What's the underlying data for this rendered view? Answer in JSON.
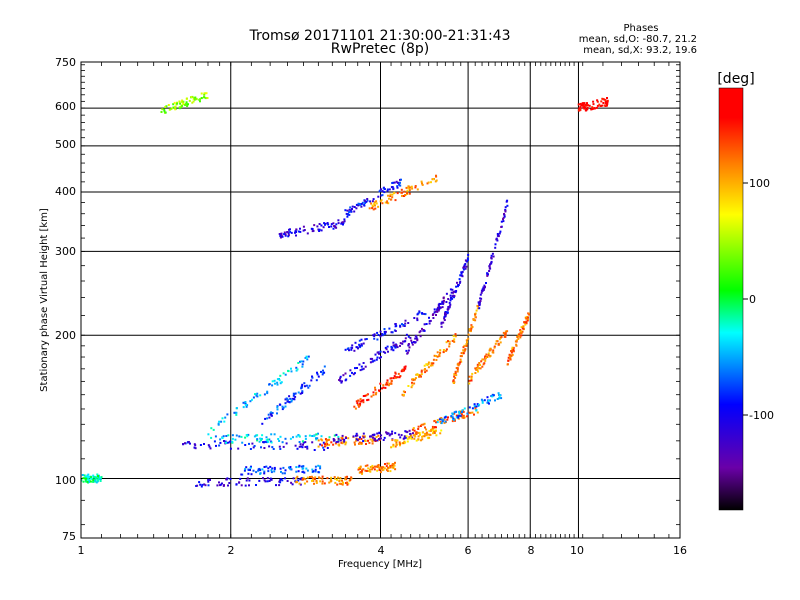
{
  "chart_data": {
    "type": "scatter",
    "title": "Tromsø 20171101 21:30:00-21:31:43",
    "subtitle": "RwPretec (8p)",
    "xlabel": "Frequency [MHz]",
    "ylabel": "Stationary phase Virtual Height [km]",
    "x_scale": "log",
    "y_scale": "log",
    "xlim": [
      1,
      16
    ],
    "ylim": [
      75,
      750
    ],
    "x_ticks": [
      "1",
      "2",
      "4",
      "6",
      "8",
      "10",
      "16"
    ],
    "y_ticks": [
      "75",
      "100",
      "200",
      "300",
      "400",
      "500",
      "600",
      "750"
    ],
    "grid": true,
    "phases_header": "Phases",
    "phases_lines": [
      "mean, sd,O: -80.7, 21.2",
      "mean, sd,X:  93.2, 19.6"
    ],
    "colorbar": {
      "label": "[deg]",
      "range": [
        -180,
        180
      ],
      "ticks": [
        "100",
        "0",
        "-100"
      ],
      "colors": [
        "#000000",
        "#6a00a8",
        "#0000ff",
        "#00ffff",
        "#00ff00",
        "#ffff00",
        "#ff7f00",
        "#ff0000"
      ]
    },
    "traces": [
      {
        "x": [
          1.0,
          1.1
        ],
        "h": [
          100,
          100
        ],
        "phase": -20
      },
      {
        "x": [
          1.7,
          2.8
        ],
        "h": [
          98,
          99
        ],
        "phase": -110
      },
      {
        "x": [
          2.7,
          3.5
        ],
        "h": [
          99,
          99
        ],
        "phase": 110
      },
      {
        "x": [
          2.1,
          3.1
        ],
        "h": [
          104,
          105
        ],
        "phase": -70
      },
      {
        "x": [
          3.6,
          4.3
        ],
        "h": [
          104,
          106
        ],
        "phase": 115
      },
      {
        "x": [
          1.6,
          3.2
        ],
        "h": [
          118,
          117
        ],
        "phase": -100
      },
      {
        "x": [
          1.8,
          3.3
        ],
        "h": [
          121,
          122
        ],
        "phase": -40
      },
      {
        "x": [
          3.0,
          4.0
        ],
        "h": [
          119,
          121
        ],
        "phase": 120
      },
      {
        "x": [
          3.2,
          4.7
        ],
        "h": [
          121,
          124
        ],
        "phase": -120
      },
      {
        "x": [
          4.2,
          5.3
        ],
        "h": [
          118,
          126
        ],
        "phase": 100
      },
      {
        "x": [
          4.6,
          6.3
        ],
        "h": [
          125,
          140
        ],
        "phase": 120
      },
      {
        "x": [
          5.2,
          7.0
        ],
        "h": [
          130,
          150
        ],
        "phase": -60
      },
      {
        "x": [
          1.8,
          2.9
        ],
        "h": [
          125,
          180
        ],
        "phase": -45
      },
      {
        "x": [
          2.3,
          3.1
        ],
        "h": [
          130,
          170
        ],
        "phase": -80
      },
      {
        "x": [
          3.3,
          4.6
        ],
        "h": [
          160,
          200
        ],
        "phase": -110
      },
      {
        "x": [
          3.4,
          5.0
        ],
        "h": [
          185,
          225
        ],
        "phase": -100
      },
      {
        "x": [
          3.5,
          4.5
        ],
        "h": [
          140,
          170
        ],
        "phase": 140
      },
      {
        "x": [
          4.4,
          5.7
        ],
        "h": [
          150,
          200
        ],
        "phase": 110
      },
      {
        "x": [
          4.5,
          5.6
        ],
        "h": [
          185,
          250
        ],
        "phase": -120
      },
      {
        "x": [
          5.3,
          6.0
        ],
        "h": [
          210,
          290
        ],
        "phase": -110
      },
      {
        "x": [
          5.6,
          6.3
        ],
        "h": [
          160,
          230
        ],
        "phase": 120
      },
      {
        "x": [
          6.0,
          7.2
        ],
        "h": [
          160,
          205
        ],
        "phase": 115
      },
      {
        "x": [
          6.3,
          7.2
        ],
        "h": [
          230,
          380
        ],
        "phase": -115
      },
      {
        "x": [
          7.2,
          8.0
        ],
        "h": [
          175,
          225
        ],
        "phase": 115
      },
      {
        "x": [
          2.5,
          3.4
        ],
        "h": [
          325,
          345
        ],
        "phase": -110
      },
      {
        "x": [
          3.4,
          4.4
        ],
        "h": [
          360,
          420
        ],
        "phase": -95
      },
      {
        "x": [
          3.8,
          5.2
        ],
        "h": [
          370,
          430
        ],
        "phase": 115
      },
      {
        "x": [
          1.45,
          1.8
        ],
        "h": [
          590,
          640
        ],
        "phase": 40
      },
      {
        "x": [
          10.0,
          11.5
        ],
        "h": [
          600,
          620
        ],
        "phase": 170
      }
    ]
  }
}
